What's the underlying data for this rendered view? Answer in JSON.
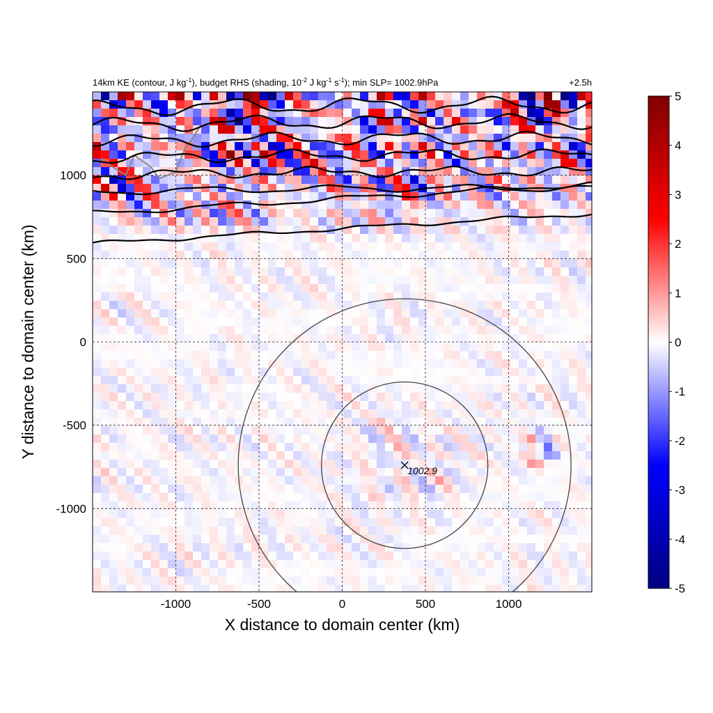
{
  "chart_data": {
    "type": "heatmap",
    "title_left": "14km KE (contour, J kg",
    "title_left_sup1": "-1",
    "title_left_mid": "), budget RHS (shading, 10",
    "title_left_sup2": "-2",
    "title_left_mid2": " J kg",
    "title_left_sup3": "-1",
    "title_left_mid3": " s",
    "title_left_sup4": "-1",
    "title_left_end": "); min SLP= 1002.9hPa",
    "title_right": "+2.5h",
    "xlabel": "X distance to domain center (km)",
    "ylabel": "Y distance to domain center (km)",
    "xlim": [
      -1500,
      1500
    ],
    "ylim": [
      -1500,
      1500
    ],
    "xticks": [
      -1000,
      -500,
      0,
      500,
      1000
    ],
    "yticks": [
      1000,
      500,
      0,
      -500,
      -1000
    ],
    "xtick_labels": [
      "-1000",
      "-500",
      "0",
      "500",
      "1000"
    ],
    "ytick_labels": [
      "1000",
      "500",
      "0",
      "-500",
      "-1000"
    ],
    "grid": true,
    "colorbar": {
      "min": -5,
      "max": 5,
      "ticks": [
        5,
        4,
        3,
        2,
        1,
        0,
        -1,
        -2,
        -3,
        -4,
        -5
      ],
      "tick_labels": [
        "5",
        "4",
        "3",
        "2",
        "1",
        "0",
        "-1",
        "-2",
        "-3",
        "-4",
        "-5"
      ],
      "colors": [
        "#000080",
        "#0000ff",
        "#ffffff",
        "#ff0000",
        "#800000"
      ]
    },
    "storm_center": {
      "x": 375,
      "y": -740,
      "label": "1002.9"
    },
    "range_rings_km": [
      500,
      1000
    ],
    "ke_contours_y_at_left_edge": [
      590,
      770,
      900,
      1000,
      1100,
      1200,
      1300,
      1400
    ]
  }
}
